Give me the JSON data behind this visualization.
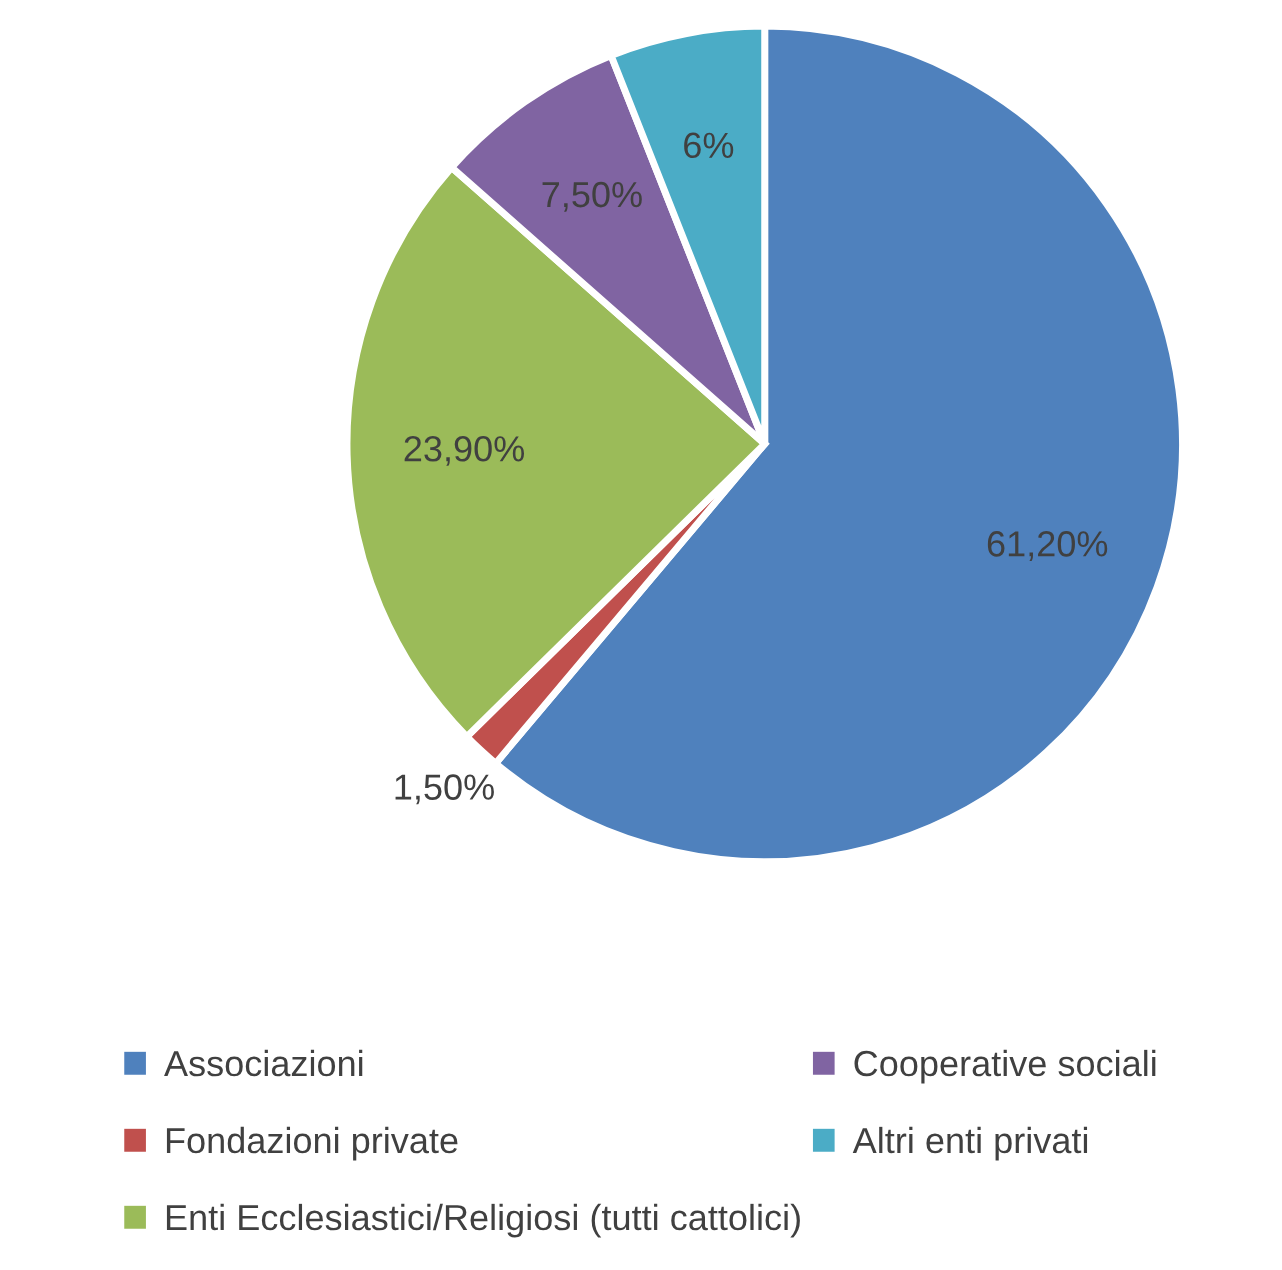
{
  "chart_data": {
    "type": "pie",
    "categories": [
      "Associazioni",
      "Fondazioni private",
      "Enti Ecclesiastici/Religiosi (tutti cattolici)",
      "Cooperative sociali",
      "Altri enti privati"
    ],
    "values": [
      61.2,
      1.5,
      23.9,
      7.5,
      6
    ],
    "value_labels": [
      "61,20%",
      "1,50%",
      "23,90%",
      "7,50%",
      "6%"
    ],
    "colors": [
      "#4f81bd",
      "#c0504d",
      "#9bbb59",
      "#8064a2",
      "#4bacc6"
    ],
    "legend": "bottom"
  }
}
